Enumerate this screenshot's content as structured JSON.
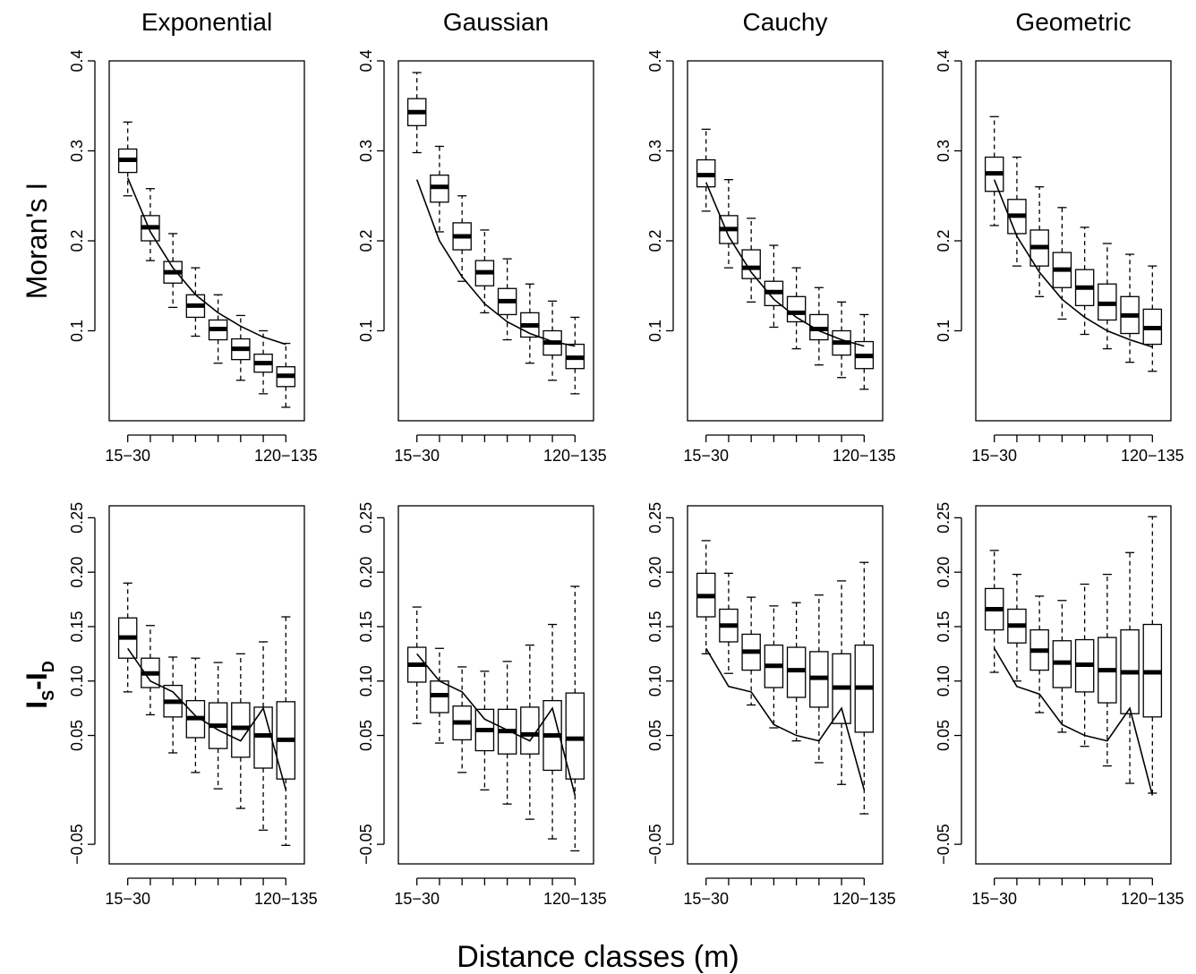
{
  "xlabel": "Distance classes (m)",
  "chart_data": [
    {
      "type": "box",
      "title": "Exponential",
      "ylabel": [
        {
          "text": "Moran's I"
        }
      ],
      "categories": [
        "15−30",
        null,
        null,
        null,
        null,
        null,
        null,
        "120−135"
      ],
      "ylim": [
        0,
        0.4
      ],
      "yticks": [
        0.1,
        0.2,
        0.3,
        0.4
      ],
      "boxes": {
        "low": [
          0.25,
          0.178,
          0.126,
          0.094,
          0.064,
          0.045,
          0.03,
          0.015
        ],
        "q1": [
          0.276,
          0.2,
          0.153,
          0.115,
          0.09,
          0.068,
          0.054,
          0.038
        ],
        "median": [
          0.29,
          0.215,
          0.165,
          0.128,
          0.102,
          0.08,
          0.064,
          0.05
        ],
        "q3": [
          0.302,
          0.228,
          0.177,
          0.14,
          0.112,
          0.091,
          0.074,
          0.06
        ],
        "high": [
          0.332,
          0.258,
          0.208,
          0.17,
          0.14,
          0.117,
          0.1,
          0.086
        ]
      },
      "line": [
        0.27,
        0.21,
        0.17,
        0.14,
        0.12,
        0.105,
        0.093,
        0.085
      ]
    },
    {
      "type": "box",
      "title": "Gaussian",
      "categories": [
        "15−30",
        null,
        null,
        null,
        null,
        null,
        null,
        "120−135"
      ],
      "ylim": [
        0,
        0.4
      ],
      "yticks": [
        0.1,
        0.2,
        0.3,
        0.4
      ],
      "boxes": {
        "low": [
          0.298,
          0.21,
          0.155,
          0.12,
          0.09,
          0.064,
          0.045,
          0.03
        ],
        "q1": [
          0.328,
          0.243,
          0.19,
          0.15,
          0.118,
          0.093,
          0.073,
          0.058
        ],
        "median": [
          0.343,
          0.26,
          0.205,
          0.165,
          0.133,
          0.106,
          0.087,
          0.07
        ],
        "q3": [
          0.358,
          0.273,
          0.22,
          0.178,
          0.147,
          0.12,
          0.1,
          0.085
        ],
        "high": [
          0.387,
          0.305,
          0.25,
          0.212,
          0.18,
          0.152,
          0.133,
          0.115
        ]
      },
      "line": [
        0.268,
        0.2,
        0.16,
        0.13,
        0.11,
        0.097,
        0.088,
        0.083
      ]
    },
    {
      "type": "box",
      "title": "Cauchy",
      "categories": [
        "15−30",
        null,
        null,
        null,
        null,
        null,
        null,
        "120−135"
      ],
      "ylim": [
        0,
        0.4
      ],
      "yticks": [
        0.1,
        0.2,
        0.3,
        0.4
      ],
      "boxes": {
        "low": [
          0.233,
          0.17,
          0.132,
          0.104,
          0.08,
          0.062,
          0.048,
          0.035
        ],
        "q1": [
          0.26,
          0.197,
          0.158,
          0.128,
          0.11,
          0.09,
          0.073,
          0.058
        ],
        "median": [
          0.273,
          0.213,
          0.17,
          0.143,
          0.12,
          0.102,
          0.087,
          0.072
        ],
        "q3": [
          0.29,
          0.228,
          0.19,
          0.155,
          0.138,
          0.118,
          0.1,
          0.088
        ],
        "high": [
          0.324,
          0.268,
          0.225,
          0.195,
          0.17,
          0.148,
          0.132,
          0.118
        ]
      },
      "line": [
        0.265,
        0.205,
        0.165,
        0.135,
        0.115,
        0.1,
        0.09,
        0.083
      ]
    },
    {
      "type": "box",
      "title": "Geometric",
      "categories": [
        "15−30",
        null,
        null,
        null,
        null,
        null,
        null,
        "120−135"
      ],
      "ylim": [
        0,
        0.4
      ],
      "yticks": [
        0.1,
        0.2,
        0.3,
        0.4
      ],
      "boxes": {
        "low": [
          0.217,
          0.172,
          0.138,
          0.113,
          0.096,
          0.08,
          0.065,
          0.055
        ],
        "q1": [
          0.255,
          0.208,
          0.172,
          0.148,
          0.128,
          0.112,
          0.097,
          0.085
        ],
        "median": [
          0.275,
          0.228,
          0.193,
          0.168,
          0.148,
          0.13,
          0.117,
          0.103
        ],
        "q3": [
          0.293,
          0.246,
          0.212,
          0.187,
          0.168,
          0.152,
          0.138,
          0.124
        ],
        "high": [
          0.338,
          0.293,
          0.26,
          0.237,
          0.215,
          0.197,
          0.185,
          0.172
        ]
      },
      "line": [
        0.268,
        0.205,
        0.165,
        0.135,
        0.115,
        0.1,
        0.09,
        0.082
      ]
    },
    {
      "type": "box",
      "ylabel": [
        {
          "text": "I"
        },
        {
          "text": "S",
          "sub": true
        },
        {
          "text": "-I"
        },
        {
          "text": "D",
          "sub": true
        }
      ],
      "categories": [
        "15−30",
        null,
        null,
        null,
        null,
        null,
        null,
        "120−135"
      ],
      "ylim": [
        -0.068,
        0.261
      ],
      "yticks": [
        {
          "value": -0.05,
          "label": "−0.05"
        },
        0.05,
        {
          "value": 0.1,
          "label": "0.10"
        },
        0.15,
        {
          "value": 0.2,
          "label": "0.20"
        },
        0.25
      ],
      "boxes": {
        "low": [
          0.09,
          0.069,
          0.034,
          0.016,
          0.001,
          -0.017,
          -0.037,
          -0.051
        ],
        "q1": [
          0.121,
          0.094,
          0.067,
          0.048,
          0.038,
          0.03,
          0.02,
          0.01
        ],
        "median": [
          0.14,
          0.107,
          0.081,
          0.066,
          0.059,
          0.057,
          0.05,
          0.046
        ],
        "q3": [
          0.158,
          0.121,
          0.096,
          0.082,
          0.08,
          0.08,
          0.076,
          0.081
        ],
        "high": [
          0.19,
          0.151,
          0.122,
          0.121,
          0.117,
          0.125,
          0.136,
          0.159
        ]
      },
      "line": [
        0.13,
        0.1,
        0.09,
        0.068,
        0.055,
        0.045,
        0.075,
        0.0
      ]
    },
    {
      "type": "box",
      "categories": [
        "15−30",
        null,
        null,
        null,
        null,
        null,
        null,
        "120−135"
      ],
      "ylim": [
        -0.068,
        0.261
      ],
      "yticks": [
        {
          "value": -0.05,
          "label": "−0.05"
        },
        0.05,
        {
          "value": 0.1,
          "label": "0.10"
        },
        0.15,
        {
          "value": 0.2,
          "label": "0.20"
        },
        0.25
      ],
      "boxes": {
        "low": [
          0.061,
          0.043,
          0.016,
          0.0,
          -0.013,
          -0.027,
          -0.045,
          -0.056
        ],
        "q1": [
          0.099,
          0.071,
          0.046,
          0.036,
          0.033,
          0.033,
          0.018,
          0.01
        ],
        "median": [
          0.115,
          0.087,
          0.062,
          0.055,
          0.054,
          0.051,
          0.05,
          0.047
        ],
        "q3": [
          0.131,
          0.1,
          0.077,
          0.074,
          0.074,
          0.076,
          0.082,
          0.089
        ],
        "high": [
          0.168,
          0.13,
          0.113,
          0.109,
          0.118,
          0.133,
          0.152,
          0.187
        ]
      },
      "line": [
        0.125,
        0.1,
        0.09,
        0.065,
        0.055,
        0.045,
        0.075,
        -0.005
      ]
    },
    {
      "type": "box",
      "categories": [
        "15−30",
        null,
        null,
        null,
        null,
        null,
        null,
        "120−135"
      ],
      "ylim": [
        -0.068,
        0.261
      ],
      "yticks": [
        {
          "value": -0.05,
          "label": "−0.05"
        },
        0.05,
        {
          "value": 0.1,
          "label": "0.10"
        },
        0.15,
        {
          "value": 0.2,
          "label": "0.20"
        },
        0.25
      ],
      "boxes": {
        "low": [
          0.125,
          0.107,
          0.078,
          0.057,
          0.045,
          0.025,
          0.005,
          -0.022
        ],
        "q1": [
          0.159,
          0.136,
          0.11,
          0.094,
          0.085,
          0.076,
          0.061,
          0.053
        ],
        "median": [
          0.178,
          0.151,
          0.127,
          0.114,
          0.11,
          0.103,
          0.094,
          0.094
        ],
        "q3": [
          0.199,
          0.166,
          0.143,
          0.133,
          0.131,
          0.127,
          0.125,
          0.133
        ],
        "high": [
          0.229,
          0.199,
          0.177,
          0.169,
          0.172,
          0.179,
          0.192,
          0.209
        ]
      },
      "line": [
        0.13,
        0.095,
        0.09,
        0.06,
        0.05,
        0.045,
        0.075,
        0.0
      ]
    },
    {
      "type": "box",
      "categories": [
        "15−30",
        null,
        null,
        null,
        null,
        null,
        null,
        "120−135"
      ],
      "ylim": [
        -0.068,
        0.261
      ],
      "yticks": [
        {
          "value": -0.05,
          "label": "−0.05"
        },
        0.05,
        {
          "value": 0.1,
          "label": "0.10"
        },
        0.15,
        {
          "value": 0.2,
          "label": "0.20"
        },
        0.25
      ],
      "boxes": {
        "low": [
          0.108,
          0.1,
          0.071,
          0.053,
          0.04,
          0.022,
          0.006,
          -0.003
        ],
        "q1": [
          0.147,
          0.135,
          0.11,
          0.094,
          0.09,
          0.08,
          0.07,
          0.067
        ],
        "median": [
          0.166,
          0.151,
          0.128,
          0.117,
          0.115,
          0.11,
          0.108,
          0.108
        ],
        "q3": [
          0.185,
          0.166,
          0.147,
          0.137,
          0.138,
          0.14,
          0.147,
          0.152
        ],
        "high": [
          0.22,
          0.198,
          0.178,
          0.174,
          0.189,
          0.198,
          0.218,
          0.251
        ]
      },
      "line": [
        0.13,
        0.095,
        0.088,
        0.06,
        0.05,
        0.045,
        0.075,
        -0.005
      ]
    }
  ]
}
